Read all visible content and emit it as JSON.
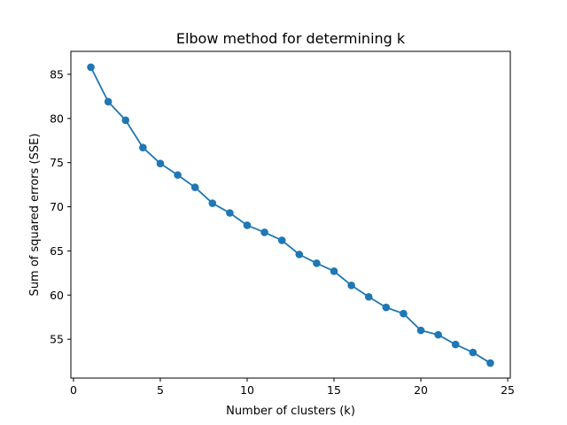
{
  "chart_data": {
    "type": "line",
    "title": "Elbow method for determining k",
    "xlabel": "Number of clusters (k)",
    "ylabel": "Sum of squared errors (SSE)",
    "xlim": [
      -0.15,
      25.15
    ],
    "ylim": [
      50.6,
      87.6
    ],
    "xticks": [
      0,
      5,
      10,
      15,
      20,
      25
    ],
    "yticks": [
      55,
      60,
      65,
      70,
      75,
      80,
      85
    ],
    "grid": false,
    "marker": "circle",
    "series": [
      {
        "color": "#1f77b4",
        "x": [
          1,
          2,
          3,
          4,
          5,
          6,
          7,
          8,
          9,
          10,
          11,
          12,
          13,
          14,
          15,
          16,
          17,
          18,
          19,
          20,
          21,
          22,
          23,
          24
        ],
        "values": [
          85.8,
          81.9,
          79.8,
          76.7,
          74.9,
          73.6,
          72.2,
          70.4,
          69.3,
          67.9,
          67.1,
          66.2,
          64.6,
          63.6,
          62.7,
          61.1,
          59.8,
          58.6,
          57.9,
          56.0,
          55.5,
          54.4,
          53.5,
          52.3
        ]
      }
    ]
  }
}
